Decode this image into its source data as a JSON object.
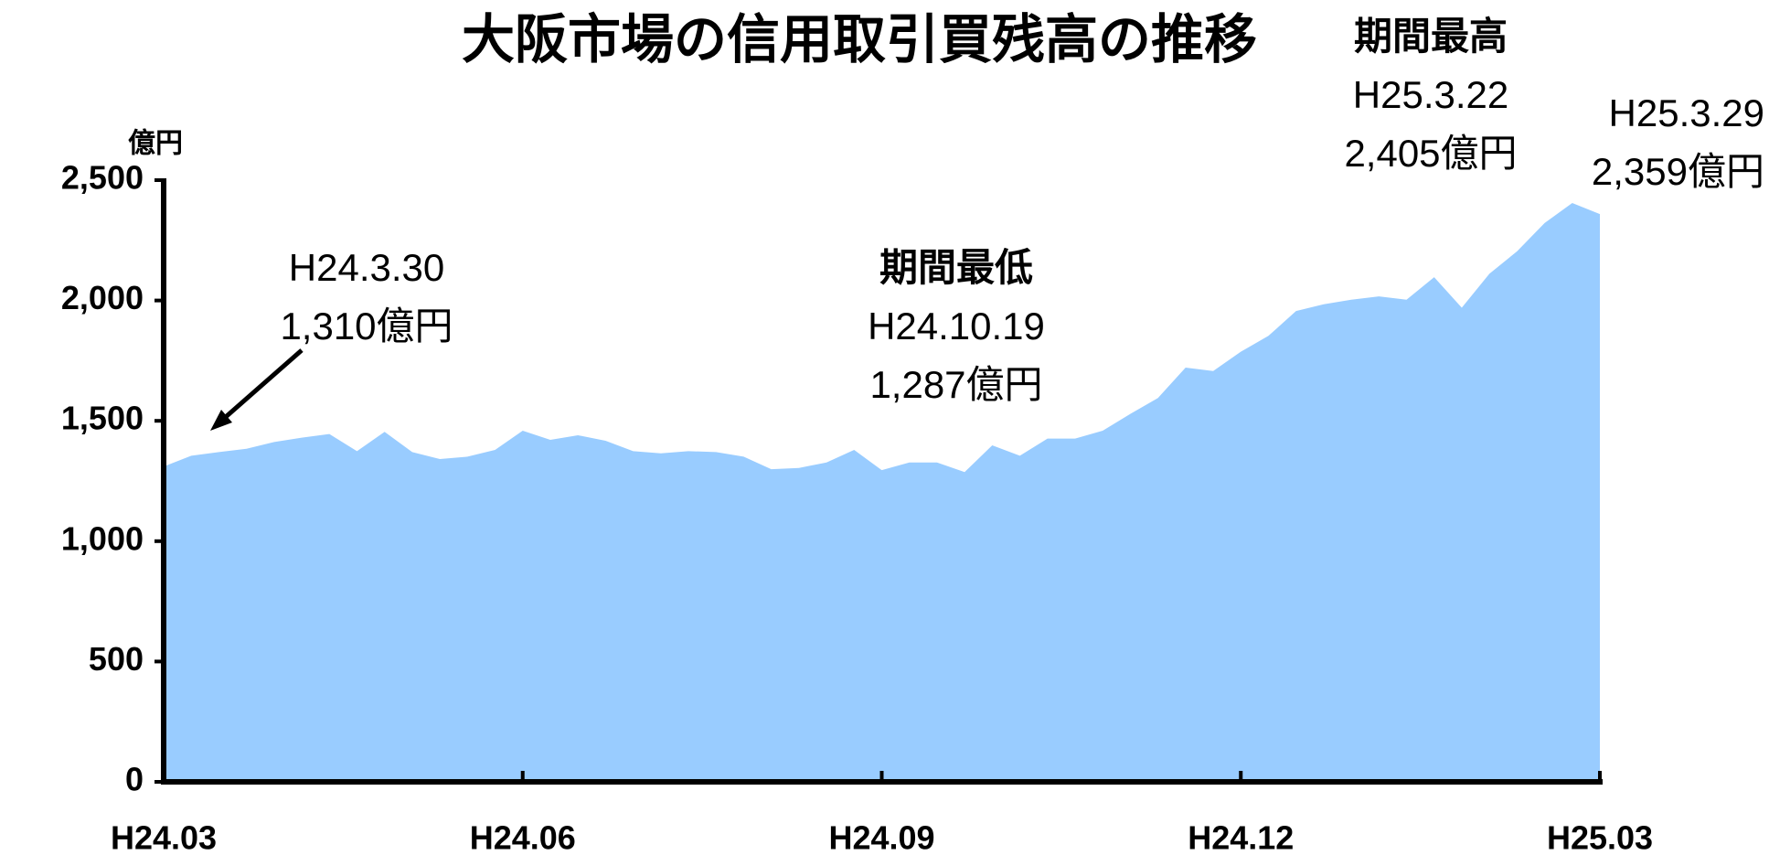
{
  "chart_data": {
    "type": "area",
    "title": "大阪市場の信用取引買残高の推移",
    "y_unit": "億円",
    "xtick_labels": [
      "H24.03",
      "H24.06",
      "H24.09",
      "H24.12",
      "H25.03"
    ],
    "values": [
      1310,
      1355,
      1370,
      1384,
      1412,
      1430,
      1445,
      1374,
      1454,
      1370,
      1341,
      1351,
      1379,
      1459,
      1421,
      1440,
      1417,
      1374,
      1365,
      1374,
      1370,
      1351,
      1299,
      1304,
      1327,
      1379,
      1295,
      1327,
      1327,
      1287,
      1398,
      1355,
      1426,
      1426,
      1459,
      1529,
      1595,
      1721,
      1707,
      1787,
      1853,
      1956,
      1984,
      2003,
      2017,
      2003,
      2097,
      1970,
      2111,
      2204,
      2322,
      2405,
      2359
    ],
    "color": "#99ccff",
    "ylim": [
      0,
      2500
    ],
    "yticks": [
      0,
      {
        "value": 500,
        "label": "500"
      },
      {
        "value": 1000,
        "label": "1,000"
      },
      {
        "value": 1500,
        "label": "1,500"
      },
      {
        "value": 2000,
        "label": "2,000"
      },
      {
        "value": 2500,
        "label": "2,500"
      }
    ],
    "annotations": [
      {
        "lines": [
          "H24.3.30",
          "1,310億円"
        ]
      },
      {
        "lines": [
          "期間最低",
          "H24.10.19",
          "1,287億円"
        ]
      },
      {
        "lines": [
          "期間最高",
          "H25.3.22",
          "2,405億円"
        ]
      },
      {
        "lines": [
          "H25.3.29",
          "2,359億円"
        ]
      }
    ]
  }
}
